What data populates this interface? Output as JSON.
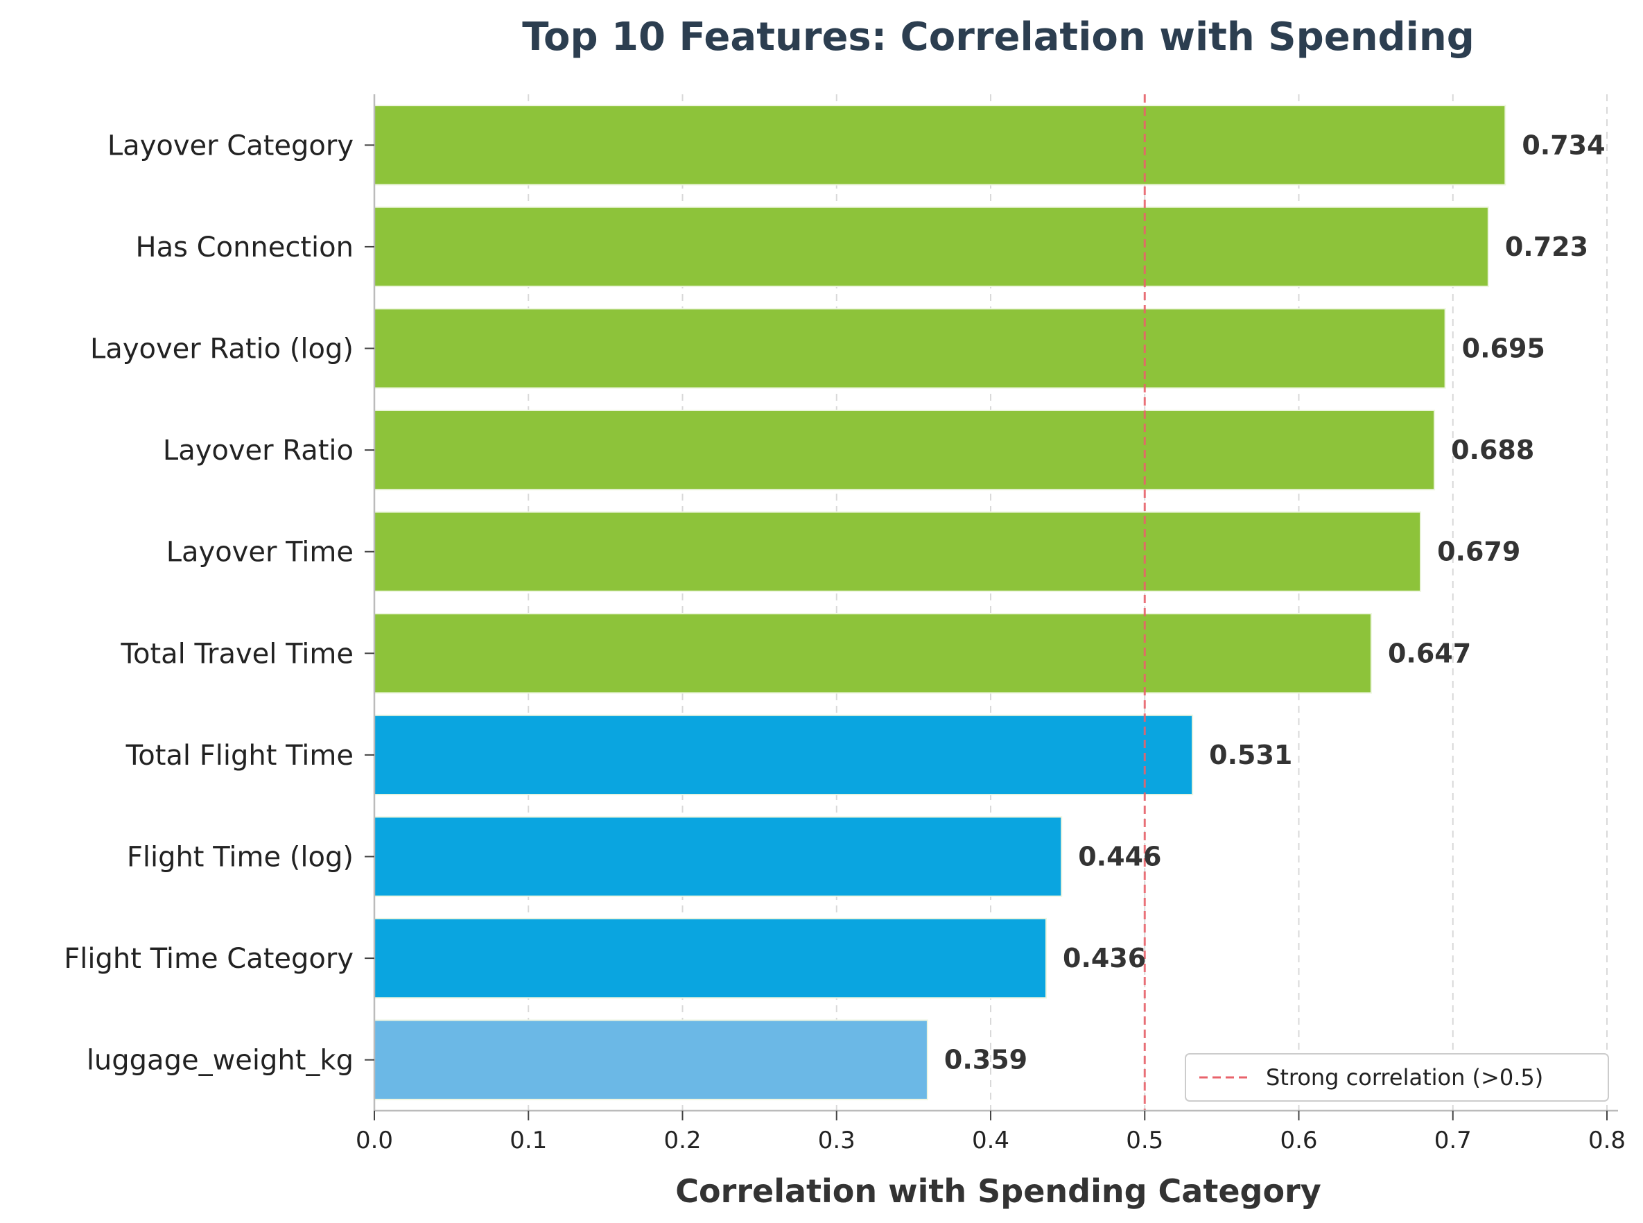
{
  "chart_data": {
    "type": "bar",
    "orientation": "horizontal",
    "title": "Top 10 Features: Correlation with Spending",
    "xlabel": "Correlation with Spending Category",
    "ylabel": "",
    "xlim": [
      0,
      0.8
    ],
    "xticks": [
      0.0,
      0.1,
      0.2,
      0.3,
      0.4,
      0.5,
      0.6,
      0.7,
      0.8
    ],
    "xtick_labels": [
      "0.0",
      "0.1",
      "0.2",
      "0.3",
      "0.4",
      "0.5",
      "0.6",
      "0.7",
      "0.8"
    ],
    "grid": "x-dashed",
    "categories": [
      "Layover Category",
      "Has Connection",
      "Layover Ratio (log)",
      "Layover Ratio",
      "Layover Time",
      "Total Travel Time",
      "Total Flight Time",
      "Flight Time (log)",
      "Flight Time Category",
      "luggage_weight_kg"
    ],
    "values": [
      0.734,
      0.723,
      0.695,
      0.688,
      0.679,
      0.647,
      0.531,
      0.446,
      0.436,
      0.359
    ],
    "value_labels": [
      "0.734",
      "0.723",
      "0.695",
      "0.688",
      "0.679",
      "0.647",
      "0.531",
      "0.446",
      "0.436",
      "0.359"
    ],
    "bar_colors": [
      "#8dc33a",
      "#8dc33a",
      "#8dc33a",
      "#8dc33a",
      "#8dc33a",
      "#8dc33a",
      "#0aa5e0",
      "#0aa5e0",
      "#0aa5e0",
      "#6bb8e6"
    ],
    "reference_line": {
      "x": 0.5,
      "color": "#e8636b",
      "style": "dashed",
      "legend_label": "Strong correlation (>0.5)"
    },
    "legend_position": "lower-right"
  }
}
